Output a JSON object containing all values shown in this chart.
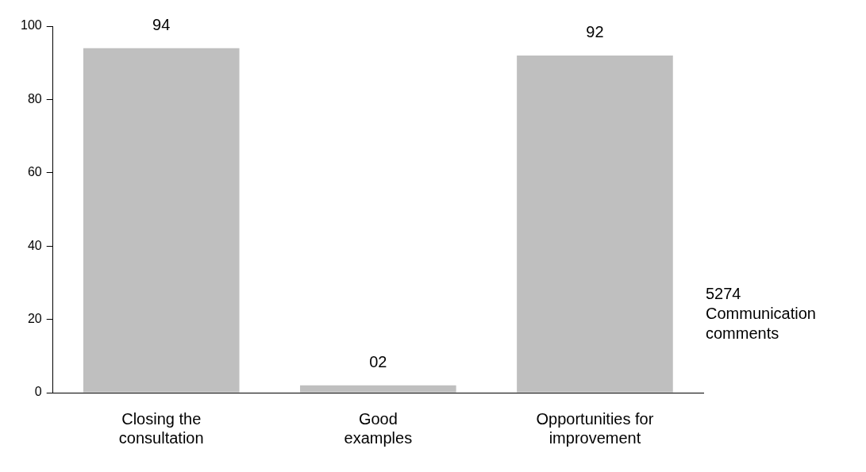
{
  "chart_data": {
    "type": "bar",
    "categories": [
      "Closing the consultation",
      "Good examples",
      "Opportunities for improvement"
    ],
    "values": [
      94,
      2,
      92
    ],
    "color": "#bfbfbf",
    "value_labels": [
      "94",
      "02",
      "92"
    ],
    "ylim": [
      0,
      100
    ],
    "yticks": [
      0,
      20,
      40,
      60,
      80,
      100
    ],
    "grid": false,
    "legend": false,
    "annotations": [
      "5274 Communication comments"
    ]
  }
}
